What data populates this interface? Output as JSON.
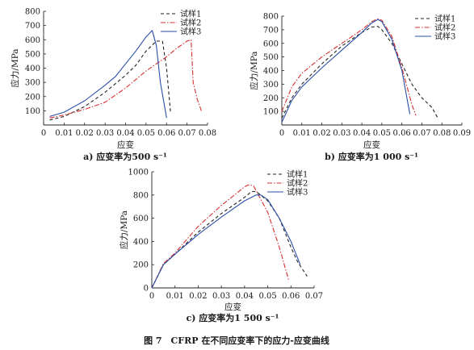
{
  "figure_caption": "图 7　CFRP 在不同应变率下的应力-应变曲线",
  "chart_data": [
    {
      "type": "line",
      "caption": "a) 应变率为500 s⁻¹",
      "xlabel": "应变",
      "ylabel": "应力/MPa",
      "xlim": [
        0,
        0.08
      ],
      "ylim": [
        0,
        800
      ],
      "xticks": [
        "0",
        "0.01",
        "0.02",
        "0.03",
        "0.04",
        "0.05",
        "0.06",
        "0.07",
        "0.08"
      ],
      "yticks": [
        "100",
        "200",
        "300",
        "400",
        "500",
        "600",
        "700",
        "800"
      ],
      "legend_position": "top-right",
      "series": [
        {
          "name": "试样1",
          "color": "#222222",
          "dash": "4,3",
          "x": [
            0.003,
            0.01,
            0.02,
            0.03,
            0.04,
            0.045,
            0.05,
            0.055,
            0.058,
            0.06,
            0.062
          ],
          "y": [
            35,
            60,
            130,
            230,
            350,
            420,
            520,
            590,
            590,
            400,
            80
          ]
        },
        {
          "name": "试样2",
          "color": "#d32f2f",
          "dash": "6,2,1.5,2",
          "x": [
            0.003,
            0.01,
            0.02,
            0.03,
            0.04,
            0.05,
            0.06,
            0.065,
            0.07,
            0.072,
            0.073,
            0.075,
            0.077
          ],
          "y": [
            50,
            70,
            110,
            160,
            260,
            380,
            480,
            540,
            590,
            600,
            300,
            180,
            100
          ]
        },
        {
          "name": "试样3",
          "color": "#2a4fa8",
          "dash": "",
          "x": [
            0.003,
            0.01,
            0.02,
            0.03,
            0.035,
            0.04,
            0.045,
            0.05,
            0.053,
            0.055,
            0.057,
            0.06
          ],
          "y": [
            60,
            90,
            170,
            280,
            340,
            430,
            520,
            620,
            665,
            560,
            300,
            50
          ]
        }
      ]
    },
    {
      "type": "line",
      "caption": "b) 应变率为1 000 s⁻¹",
      "xlabel": "应变",
      "ylabel": "应力/MPa",
      "xlim": [
        0,
        0.09
      ],
      "ylim": [
        0,
        800
      ],
      "xticks": [
        "0",
        "0.01",
        "0.02",
        "0.03",
        "0.04",
        "0.05",
        "0.06",
        "0.07",
        "0.08",
        "0.09"
      ],
      "yticks": [
        "100",
        "200",
        "300",
        "400",
        "500",
        "600",
        "700",
        "800"
      ],
      "legend_position": "top-right",
      "series": [
        {
          "name": "试样1",
          "color": "#222222",
          "dash": "4,3",
          "x": [
            0,
            0.005,
            0.01,
            0.02,
            0.03,
            0.04,
            0.045,
            0.048,
            0.05,
            0.055,
            0.06,
            0.065,
            0.07,
            0.075,
            0.078
          ],
          "y": [
            50,
            200,
            300,
            450,
            580,
            680,
            720,
            725,
            700,
            600,
            450,
            300,
            200,
            130,
            50
          ]
        },
        {
          "name": "试样2",
          "color": "#d32f2f",
          "dash": "6,2,1.5,2",
          "x": [
            0,
            0.005,
            0.01,
            0.02,
            0.03,
            0.04,
            0.045,
            0.048,
            0.05,
            0.055,
            0.06,
            0.065,
            0.067
          ],
          "y": [
            100,
            280,
            380,
            500,
            600,
            700,
            760,
            780,
            770,
            650,
            420,
            150,
            70
          ]
        },
        {
          "name": "试样3",
          "color": "#2a4fa8",
          "dash": "",
          "x": [
            0,
            0.005,
            0.01,
            0.02,
            0.03,
            0.04,
            0.045,
            0.048,
            0.05,
            0.055,
            0.06,
            0.064
          ],
          "y": [
            20,
            180,
            280,
            420,
            550,
            680,
            750,
            775,
            760,
            630,
            400,
            80
          ]
        }
      ]
    },
    {
      "type": "line",
      "caption": "c) 应变率为1 500 s⁻¹",
      "xlabel": "应变",
      "ylabel": "应力/MPa",
      "xlim": [
        0,
        0.07
      ],
      "ylim": [
        0,
        1000
      ],
      "xticks": [
        "0",
        "0.01",
        "0.02",
        "0.03",
        "0.04",
        "0.05",
        "0.06",
        "0.07"
      ],
      "yticks": [
        "0",
        "200",
        "400",
        "600",
        "800",
        "1000"
      ],
      "legend_position": "top-right",
      "series": [
        {
          "name": "试样1",
          "color": "#222222",
          "dash": "4,3",
          "x": [
            0,
            0.005,
            0.01,
            0.02,
            0.03,
            0.04,
            0.043,
            0.045,
            0.05,
            0.055,
            0.06,
            0.063,
            0.067
          ],
          "y": [
            0,
            200,
            290,
            480,
            640,
            780,
            830,
            830,
            750,
            600,
            350,
            220,
            100
          ]
        },
        {
          "name": "试样2",
          "color": "#d32f2f",
          "dash": "6,2,1.5,2",
          "x": [
            0,
            0.005,
            0.01,
            0.02,
            0.03,
            0.04,
            0.042,
            0.044,
            0.05,
            0.055,
            0.059
          ],
          "y": [
            0,
            210,
            300,
            530,
            710,
            870,
            890,
            875,
            650,
            350,
            70
          ]
        },
        {
          "name": "试样3",
          "color": "#2a4fa8",
          "dash": "",
          "x": [
            0,
            0.005,
            0.01,
            0.02,
            0.03,
            0.04,
            0.045,
            0.047,
            0.05,
            0.055,
            0.06,
            0.064
          ],
          "y": [
            0,
            200,
            290,
            460,
            610,
            750,
            800,
            800,
            760,
            600,
            400,
            200
          ]
        }
      ]
    }
  ]
}
